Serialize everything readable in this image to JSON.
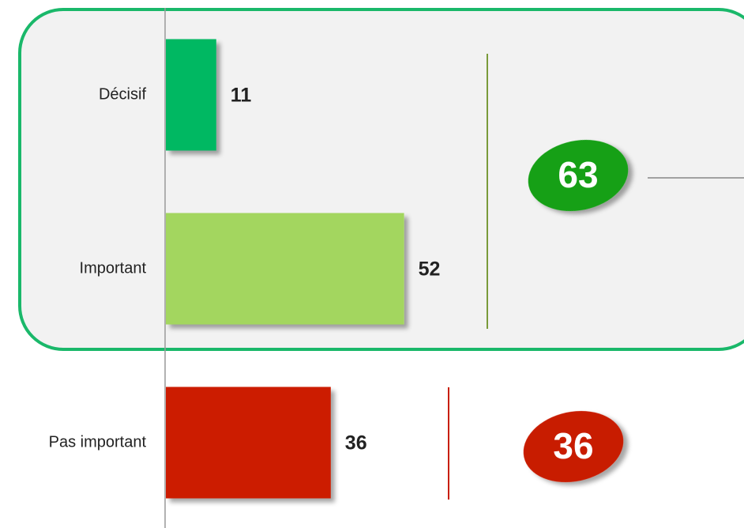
{
  "chart_data": {
    "type": "bar",
    "orientation": "horizontal",
    "categories": [
      "Décisif",
      "Important",
      "Pas important"
    ],
    "values": [
      11,
      52,
      36
    ],
    "colors": [
      "#00b862",
      "#a3d65f",
      "#cc1f00"
    ],
    "xlim": [
      0,
      100
    ],
    "annotations": [
      {
        "value": 63,
        "color": "#12a012"
      },
      {
        "value": 36,
        "color": "#c81e00"
      }
    ]
  }
}
